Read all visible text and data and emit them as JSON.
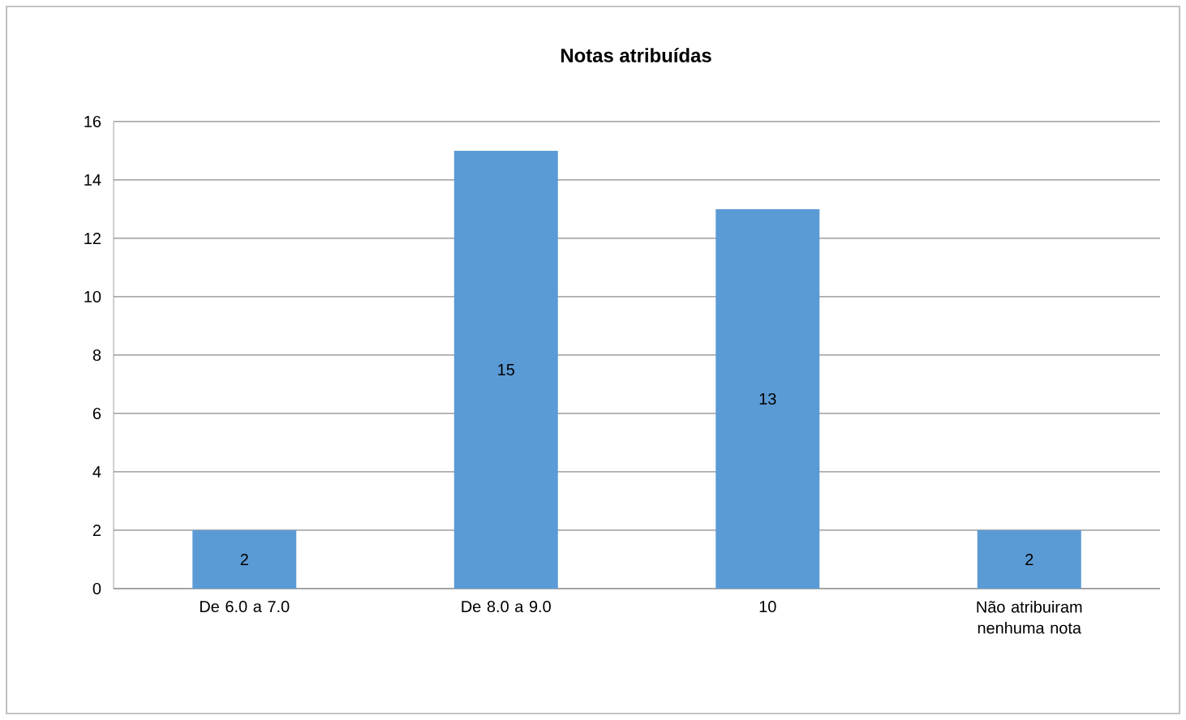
{
  "chart_data": {
    "type": "bar",
    "title": "Notas atribuídas",
    "categories": [
      "De 6.0 a 7.0",
      "De 8.0 a 9.0",
      "10",
      "Não atribuiram nenhuma nota"
    ],
    "values": [
      2,
      15,
      13,
      2
    ],
    "color": "#5b9bd5",
    "data_labels": true,
    "grid": "y",
    "ylim": [
      0,
      16
    ],
    "yticks": [
      0,
      2,
      4,
      6,
      8,
      10,
      12,
      14,
      16
    ]
  }
}
